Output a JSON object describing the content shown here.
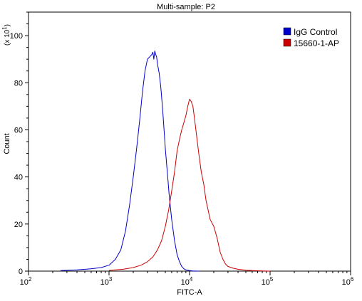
{
  "chart_data": {
    "type": "line",
    "title": "Multi-sample: P2",
    "xlabel": "FITC-A",
    "ylabel": "Count",
    "y_scale_note": "(x 10",
    "y_scale_exp": "1",
    "y_scale_close": ")",
    "x_scale": "log",
    "xlim": [
      100,
      1000000
    ],
    "ylim": [
      0,
      1100
    ],
    "grid": false,
    "legend_position": "top-right",
    "y_ticks": [
      {
        "value": 0,
        "label": "0"
      },
      {
        "value": 200,
        "label": "20"
      },
      {
        "value": 400,
        "label": "40"
      },
      {
        "value": 600,
        "label": "60"
      },
      {
        "value": 800,
        "label": "80"
      },
      {
        "value": 1000,
        "label": "100"
      }
    ],
    "x_ticks": [
      {
        "value": 100,
        "base": "10",
        "exp": "2"
      },
      {
        "value": 1000,
        "base": "10",
        "exp": "3"
      },
      {
        "value": 10000,
        "base": "10",
        "exp": "4"
      },
      {
        "value": 100000,
        "base": "10",
        "exp": "5"
      },
      {
        "value": 1000000,
        "base": "10",
        "exp": "6"
      }
    ],
    "series": [
      {
        "name": "IgG Control",
        "color": "#0000cc",
        "x": [
          250,
          400,
          600,
          800,
          1000,
          1200,
          1400,
          1600,
          1800,
          2000,
          2200,
          2400,
          2600,
          2800,
          3000,
          3200,
          3400,
          3500,
          3600,
          3700,
          3800,
          3900,
          4000,
          4200,
          4400,
          4600,
          4800,
          5000,
          5300,
          5600,
          6000,
          6500,
          7000,
          7500,
          8000,
          8500,
          9000,
          10000,
          11000,
          13000
        ],
        "y": [
          2,
          5,
          10,
          15,
          25,
          50,
          90,
          170,
          280,
          400,
          520,
          640,
          760,
          850,
          900,
          910,
          920,
          930,
          900,
          935,
          920,
          910,
          880,
          840,
          780,
          700,
          610,
          520,
          420,
          320,
          220,
          130,
          70,
          40,
          20,
          10,
          5,
          2,
          1,
          0
        ]
      },
      {
        "name": "15660-1-AP",
        "color": "#cc0000",
        "x": [
          1000,
          1500,
          2000,
          2500,
          3000,
          3500,
          4000,
          4500,
          5000,
          5500,
          6000,
          6500,
          7000,
          7500,
          8000,
          8500,
          9000,
          9500,
          10000,
          10500,
          11000,
          11500,
          12000,
          13000,
          14000,
          15000,
          16000,
          17000,
          18000,
          20000,
          22000,
          24000,
          26000,
          28000,
          30000,
          35000,
          40000,
          50000,
          60000,
          80000,
          100000
        ],
        "y": [
          3,
          8,
          15,
          25,
          40,
          60,
          90,
          130,
          190,
          260,
          340,
          420,
          510,
          560,
          600,
          630,
          660,
          700,
          730,
          720,
          700,
          650,
          600,
          500,
          420,
          370,
          300,
          260,
          220,
          190,
          140,
          80,
          50,
          30,
          20,
          12,
          8,
          4,
          2,
          1,
          0
        ]
      }
    ]
  }
}
